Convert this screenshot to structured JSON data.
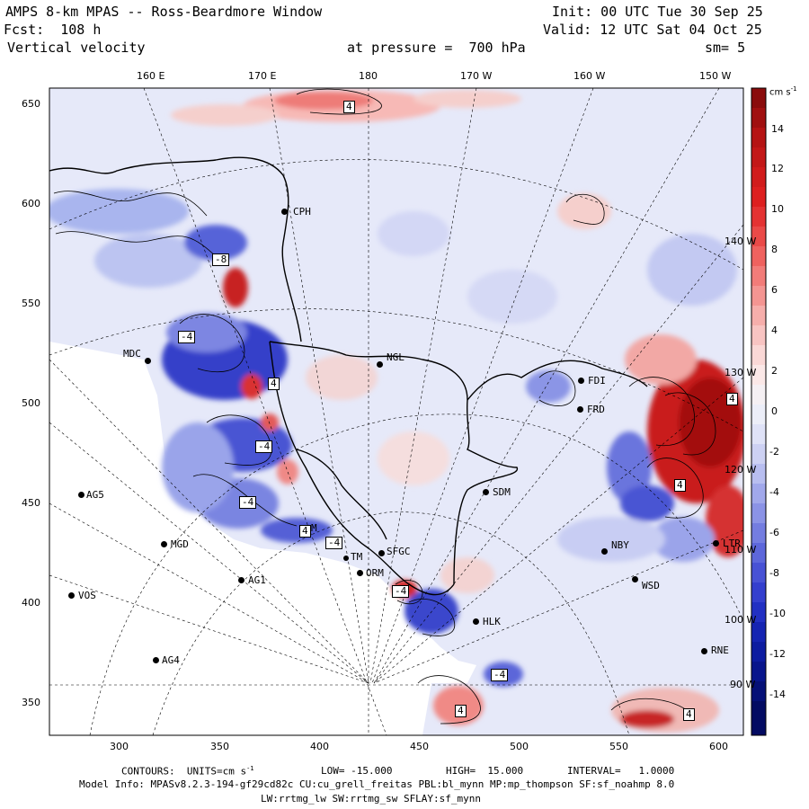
{
  "header": {
    "title": "AMPS 8-km MPAS -- Ross-Beardmore Window",
    "init": "Init: 00 UTC Tue 30 Sep 25",
    "fcst": "Fcst:  108 h",
    "valid": "Valid: 12 UTC Sat 04 Oct 25",
    "field": "Vertical velocity",
    "pressure": "at pressure =  700 hPa",
    "smooth": "sm= 5"
  },
  "top_axis": [
    "160 E",
    "170 E",
    "180",
    "170 W",
    "160 W",
    "150 W"
  ],
  "left_axis": [
    "650",
    "600",
    "550",
    "500",
    "450",
    "400",
    "350"
  ],
  "bottom_axis": [
    "300",
    "350",
    "400",
    "450",
    "500",
    "550",
    "600"
  ],
  "right_labels": [
    "140 W",
    "130 W",
    "120 W",
    "110 W",
    "100 W",
    "90 W"
  ],
  "colorbar": {
    "units": "cm s",
    "units_exp": "-1",
    "ticks": [
      "14",
      "12",
      "10",
      "8",
      "6",
      "4",
      "2",
      "0",
      "-2",
      "-4",
      "-6",
      "-8",
      "-10",
      "-12",
      "-14"
    ],
    "min": -15,
    "max": 15
  },
  "stations": [
    {
      "name": "CPH"
    },
    {
      "name": "MDC"
    },
    {
      "name": "NGL"
    },
    {
      "name": "FDI"
    },
    {
      "name": "FRD"
    },
    {
      "name": "SDM"
    },
    {
      "name": "AG5"
    },
    {
      "name": "MGD"
    },
    {
      "name": "AG1"
    },
    {
      "name": "VOS"
    },
    {
      "name": "AG4"
    },
    {
      "name": "SFGC"
    },
    {
      "name": "TM"
    },
    {
      "name": "ORM"
    },
    {
      "name": "NBY"
    },
    {
      "name": "WSD"
    },
    {
      "name": "HLK"
    },
    {
      "name": "RNE"
    },
    {
      "name": "LTR"
    },
    {
      "name": "M"
    }
  ],
  "contour_labels": [
    "4",
    "-8",
    "-4",
    "4",
    "-4",
    "4",
    "4",
    "-4",
    "-4",
    "4",
    "-4",
    "4",
    "4",
    "-4"
  ],
  "footer": {
    "contours": "CONTOURS:  UNITS=cm s",
    "contours_exp": "-1",
    "low": "LOW= -15.000",
    "high": "HIGH=  15.000",
    "interval": "INTERVAL=   1.0000",
    "model_info": "Model Info: MPASv8.2.3-194-gf29cd82c CU:cu_grell_freitas PBL:bl_mynn MP:mp_thompson SF:sf_noahmp 8.0",
    "model_info2": "LW:rrtmg_lw SW:rrtmg_sw SFLAY:sf_mynn"
  }
}
